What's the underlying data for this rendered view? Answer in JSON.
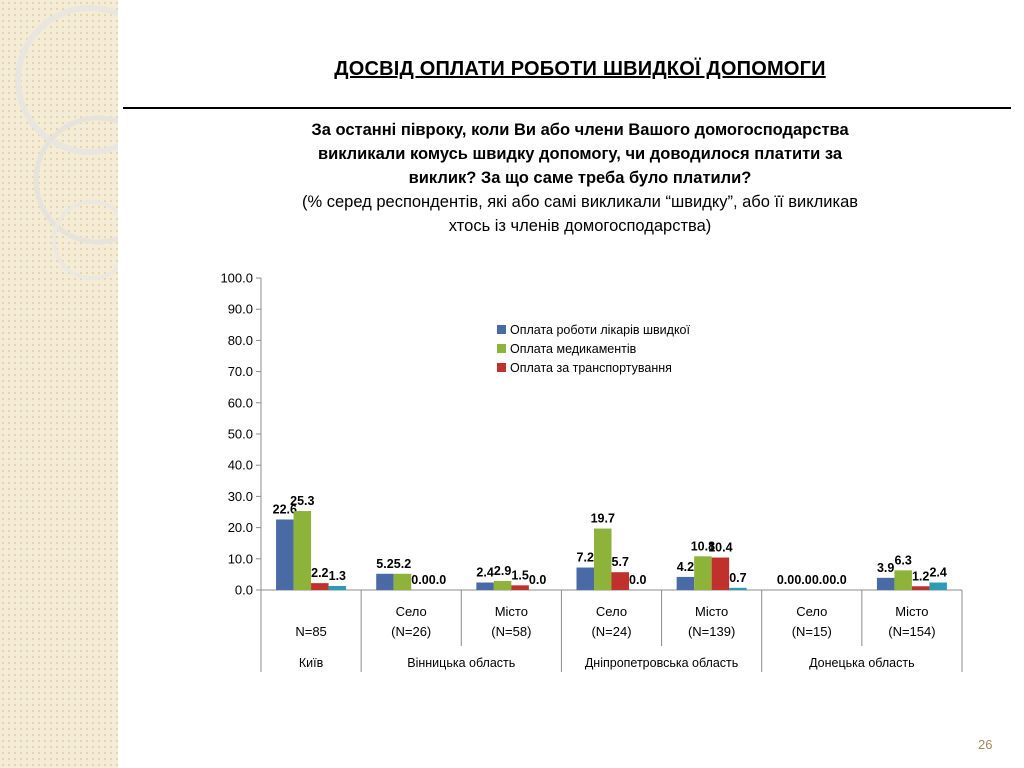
{
  "slide": {
    "title": "ДОСВІД ОПЛАТИ РОБОТИ ШВИДКОЇ ДОПОМОГИ",
    "question_lines": [
      "За останні півроку, коли Ви або члени Вашого домогосподарства",
      "викликали комусь швидку допомогу, чи доводилося платити за",
      "виклик? За що саме треба було платили?"
    ],
    "note_lines": [
      "(% серед респондентів, які або самі викликали “швидку”, або її викликав",
      "хтось із членів домогосподарства)"
    ],
    "slide_number": "26"
  },
  "chart_data": {
    "type": "bar",
    "ylim": [
      0,
      100
    ],
    "yticks": [
      "0.0",
      "10.0",
      "20.0",
      "30.0",
      "40.0",
      "50.0",
      "60.0",
      "70.0",
      "80.0",
      "90.0",
      "100.0"
    ],
    "legend_position": "top-center",
    "series": [
      {
        "name": "Оплата роботи лікарів швидкої",
        "color": "#4a6aa5",
        "values": [
          22.6,
          5.2,
          2.4,
          7.2,
          4.2,
          0.0,
          3.9
        ],
        "labels": [
          "22.6",
          "5.2",
          "2.4",
          "7.2",
          "4.2",
          "0.0",
          "3.9"
        ]
      },
      {
        "name": "Оплата медикаментів",
        "color": "#8db33b",
        "values": [
          25.3,
          5.2,
          2.9,
          19.7,
          10.8,
          0.0,
          6.3
        ],
        "labels": [
          "25.3",
          "5.2",
          "2.9",
          "19.7",
          "10.8",
          "0.0",
          "6.3"
        ]
      },
      {
        "name": "Оплата за транспортування",
        "color": "#c0302c",
        "values": [
          2.2,
          0.0,
          1.5,
          5.7,
          10.4,
          0.0,
          1.2
        ],
        "labels": [
          "2.2",
          "0.0",
          "1.5",
          "5.7",
          "10.4",
          "0.0",
          "1.2"
        ]
      },
      {
        "name": "",
        "color": "#2f9bb3",
        "values": [
          1.3,
          0.0,
          0.0,
          0.0,
          0.7,
          0.0,
          2.4
        ],
        "labels": [
          "1.3",
          "0.0",
          "0.0",
          "0.0",
          "0.7",
          "0.0",
          "2.4"
        ]
      }
    ],
    "categories": [
      {
        "sub": "",
        "n": "N=85"
      },
      {
        "sub": "Село",
        "n": "(N=26)"
      },
      {
        "sub": "Місто",
        "n": "(N=58)"
      },
      {
        "sub": "Село",
        "n": "(N=24)"
      },
      {
        "sub": "Місто",
        "n": "(N=139)"
      },
      {
        "sub": "Село",
        "n": "(N=15)"
      },
      {
        "sub": "Місто",
        "n": "(N=154)"
      }
    ],
    "groups": [
      {
        "label": "Київ",
        "span": 1
      },
      {
        "label": "Вінницька область",
        "span": 2
      },
      {
        "label": "Дніпропетровська область",
        "span": 2
      },
      {
        "label": "Донецька область",
        "span": 2
      }
    ]
  },
  "colors": {
    "axis": "#8c8c8c",
    "decor_bg": "#f3ead2",
    "decor_dots": "#e4d6ae"
  }
}
